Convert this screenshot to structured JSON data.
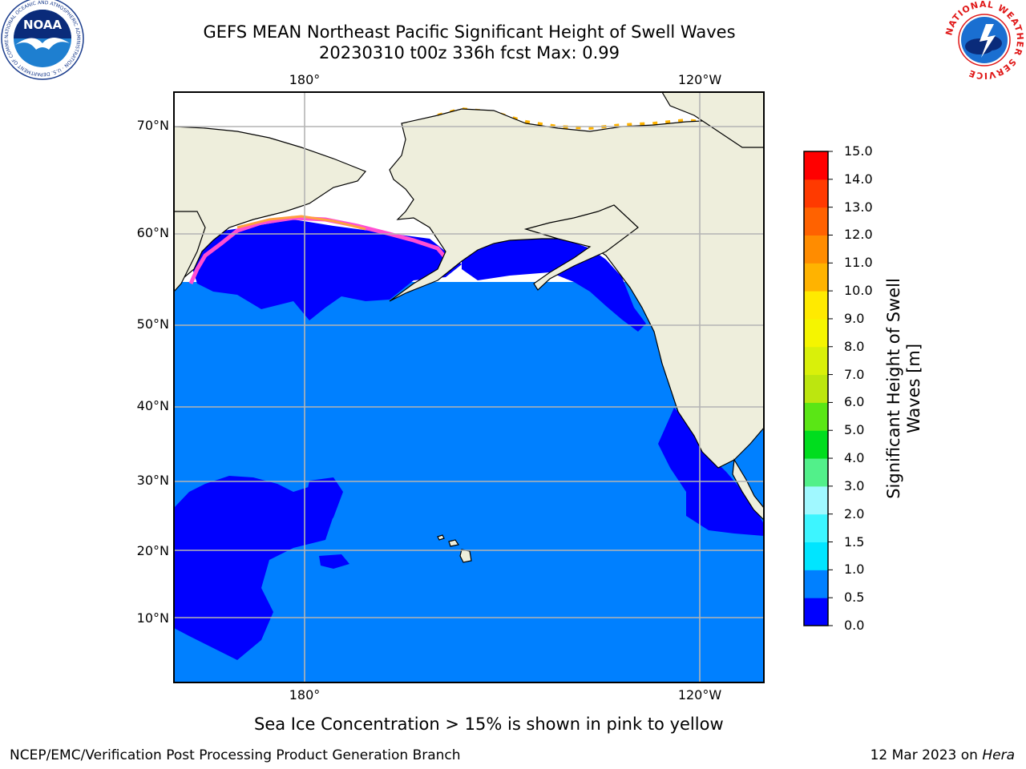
{
  "title_line1": "GEFS MEAN Northeast Pacific Significant Height of Swell Waves",
  "title_line2": "20230310 t00z 336h fcst   Max: 0.99",
  "longitude_labels": [
    "180°",
    "120°W"
  ],
  "latitude_labels": [
    "70°N",
    "60°N",
    "50°N",
    "40°N",
    "30°N",
    "20°N",
    "10°N"
  ],
  "colorbar": {
    "title_line1": "Significant Height of Swell",
    "title_line2": "Waves [m]",
    "ticks": [
      "15.0",
      "14.0",
      "13.0",
      "12.0",
      "11.0",
      "10.0",
      "9.0",
      "8.0",
      "7.0",
      "6.0",
      "5.0",
      "4.0",
      "3.0",
      "2.0",
      "1.5",
      "1.0",
      "0.5",
      "0.0"
    ],
    "bins": [
      {
        "from": 0.0,
        "to": 0.5,
        "color": "#0000ff"
      },
      {
        "from": 0.5,
        "to": 1.0,
        "color": "#0080ff"
      },
      {
        "from": 1.0,
        "to": 1.5,
        "color": "#00e5ff"
      },
      {
        "from": 1.5,
        "to": 2.0,
        "color": "#3df5ff"
      },
      {
        "from": 2.0,
        "to": 3.0,
        "color": "#a0f8ff"
      },
      {
        "from": 3.0,
        "to": 4.0,
        "color": "#52f08a"
      },
      {
        "from": 4.0,
        "to": 5.0,
        "color": "#00dd1e"
      },
      {
        "from": 5.0,
        "to": 6.0,
        "color": "#5ae615"
      },
      {
        "from": 6.0,
        "to": 7.0,
        "color": "#bce60f"
      },
      {
        "from": 7.0,
        "to": 8.0,
        "color": "#d9f00a"
      },
      {
        "from": 8.0,
        "to": 9.0,
        "color": "#f5f500"
      },
      {
        "from": 9.0,
        "to": 10.0,
        "color": "#ffea00"
      },
      {
        "from": 10.0,
        "to": 11.0,
        "color": "#ffb300"
      },
      {
        "from": 11.0,
        "to": 12.0,
        "color": "#ff8c00"
      },
      {
        "from": 12.0,
        "to": 13.0,
        "color": "#ff6200"
      },
      {
        "from": 13.0,
        "to": 14.0,
        "color": "#ff3a00"
      },
      {
        "from": 14.0,
        "to": 15.0,
        "color": "#ff0000"
      }
    ]
  },
  "colors": {
    "land": "#eeeedc",
    "ocean_low": "#0000ff",
    "ocean_mid": "#0080ff",
    "ice_pink": "#ff4fd2",
    "ice_orange": "#ffa040",
    "ice_yellow": "#ffe000",
    "grid": "#b4b4b4"
  },
  "note": "Sea Ice Concentration > 15% is shown in pink to yellow",
  "credit": "NCEP/EMC/Verification Post Processing Product Generation Branch",
  "date_prefix": "12 Mar 2023 on ",
  "date_host": "Hera",
  "logos": {
    "left": {
      "name": "noaa-logo",
      "text": "NOAA",
      "ring_text": "NATIONAL OCEANIC AND ATMOSPHERIC ADMINISTRATION · U.S. DEPARTMENT OF COMMERCE"
    },
    "right": {
      "name": "nws-logo",
      "ring_text": "NATIONAL WEATHER SERVICE"
    }
  }
}
